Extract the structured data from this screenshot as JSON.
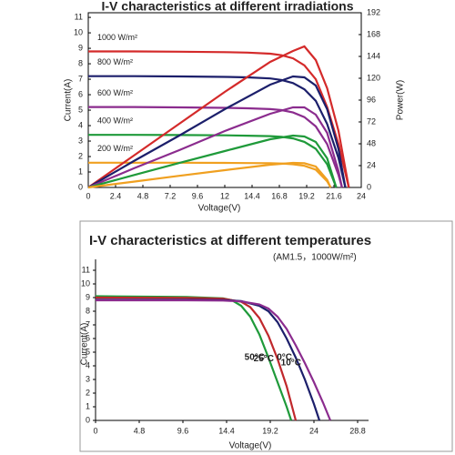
{
  "chart_data": [
    {
      "type": "line",
      "title": "I-V characteristics at different irradiations",
      "x_label": "Voltage(V)",
      "y_label": "Current(A)",
      "y2_label": "Power(W)",
      "xlim": [
        0,
        24
      ],
      "xticks": [
        0,
        2.4,
        4.8,
        7.2,
        9.6,
        12,
        14.4,
        16.8,
        19.2,
        21.6,
        24
      ],
      "ylim": [
        0,
        11.3
      ],
      "yticks": [
        0,
        1,
        2,
        3,
        4,
        5,
        6,
        7,
        8,
        9,
        10,
        11
      ],
      "y2lim": [
        0,
        192
      ],
      "y2ticks": [
        0,
        24,
        48,
        72,
        96,
        120,
        144,
        168,
        192
      ],
      "grid": false,
      "series": [
        {
          "name": "1000 W/m²",
          "color": "#d42a2a",
          "x": [
            0,
            4,
            8,
            12,
            14,
            16,
            17,
            18,
            19,
            20,
            21,
            22,
            22.9
          ],
          "values": [
            8.8,
            8.8,
            8.78,
            8.75,
            8.72,
            8.65,
            8.55,
            8.35,
            7.9,
            7.0,
            5.2,
            2.8,
            0
          ]
        },
        {
          "name": "800 W/m²",
          "color": "#1c1f6b",
          "x": [
            0,
            4,
            8,
            12,
            14,
            16,
            17,
            18,
            19,
            20,
            21,
            22,
            22.6
          ],
          "values": [
            7.2,
            7.2,
            7.18,
            7.15,
            7.12,
            7.05,
            6.95,
            6.75,
            6.35,
            5.6,
            4.1,
            1.9,
            0
          ]
        },
        {
          "name": "600 W/m²",
          "color": "#8b2c8e",
          "x": [
            0,
            4,
            8,
            12,
            14,
            16,
            17,
            18,
            19,
            20,
            21,
            22,
            22.3
          ],
          "values": [
            5.2,
            5.2,
            5.18,
            5.15,
            5.12,
            5.07,
            5,
            4.85,
            4.55,
            3.95,
            2.8,
            0.8,
            0
          ]
        },
        {
          "name": "400 W/m²",
          "color": "#1f9a3a",
          "x": [
            0,
            4,
            8,
            12,
            14,
            16,
            17,
            18,
            19,
            20,
            21,
            21.8
          ],
          "values": [
            3.4,
            3.4,
            3.39,
            3.37,
            3.35,
            3.32,
            3.27,
            3.17,
            2.95,
            2.5,
            1.5,
            0
          ]
        },
        {
          "name": "200 W/m²",
          "color": "#f0a020",
          "x": [
            0,
            4,
            8,
            12,
            14,
            16,
            17,
            18,
            19,
            20,
            21,
            21.3
          ],
          "values": [
            1.6,
            1.6,
            1.6,
            1.59,
            1.58,
            1.57,
            1.55,
            1.5,
            1.4,
            1.15,
            0.4,
            0
          ]
        },
        {
          "axis": "y2",
          "color": "#d42a2a",
          "x": [
            0,
            4,
            8,
            12,
            16,
            18,
            19,
            20,
            21,
            22,
            22.9
          ],
          "values": [
            0,
            35,
            70,
            105,
            138,
            150,
            155,
            140,
            109,
            62,
            0
          ]
        },
        {
          "axis": "y2",
          "color": "#1c1f6b",
          "x": [
            0,
            4,
            8,
            12,
            16,
            18,
            19,
            20,
            21,
            22,
            22.6
          ],
          "values": [
            0,
            29,
            57,
            86,
            113,
            122,
            121,
            112,
            86,
            42,
            0
          ]
        },
        {
          "axis": "y2",
          "color": "#8b2c8e",
          "x": [
            0,
            4,
            8,
            12,
            16,
            18,
            19,
            20,
            21,
            22,
            22.3
          ],
          "values": [
            0,
            21,
            41,
            62,
            81,
            88,
            88,
            80,
            60,
            18,
            0
          ]
        },
        {
          "axis": "y2",
          "color": "#1f9a3a",
          "x": [
            0,
            4,
            8,
            12,
            16,
            18,
            19,
            20,
            21,
            21.8
          ],
          "values": [
            0,
            13.6,
            27,
            40,
            53,
            57,
            56,
            50,
            32,
            0
          ]
        },
        {
          "axis": "y2",
          "color": "#f0a020",
          "x": [
            0,
            4,
            8,
            12,
            16,
            18,
            19,
            20,
            21,
            21.3
          ],
          "values": [
            0,
            6.4,
            12.8,
            19,
            25,
            27,
            26.6,
            23,
            8.4,
            0
          ]
        }
      ]
    },
    {
      "type": "line",
      "title": "I-V characteristics at different temperatures",
      "subtitle": "(AM1.5，1000W/m²)",
      "x_label": "Voltage(V)",
      "y_label": "Current(A)",
      "xlim": [
        0,
        30
      ],
      "xticks": [
        0,
        4.8,
        9.6,
        14.4,
        19.2,
        24,
        28.8
      ],
      "ylim": [
        0,
        11.8
      ],
      "yticks": [
        0,
        1,
        2,
        3,
        4,
        5,
        6,
        7,
        8,
        9,
        10,
        11
      ],
      "grid": false,
      "series": [
        {
          "name": "50°C",
          "color": "#1f9a3a",
          "x": [
            0,
            10,
            14,
            15,
            16,
            17,
            18,
            19,
            20,
            21,
            21.5
          ],
          "values": [
            9.1,
            9.05,
            8.95,
            8.8,
            8.4,
            7.6,
            6.3,
            4.6,
            2.8,
            1.0,
            0
          ]
        },
        {
          "name": "25°C",
          "color": "#c0282c",
          "x": [
            0,
            10,
            14,
            16,
            17,
            18,
            19,
            20,
            21,
            22
          ],
          "values": [
            9.0,
            8.98,
            8.92,
            8.7,
            8.3,
            7.5,
            6.2,
            4.5,
            2.5,
            0
          ]
        },
        {
          "name": "0°C",
          "color": "#1c1f6b",
          "x": [
            0,
            10,
            14,
            16,
            18,
            19,
            20,
            21,
            22,
            23,
            24,
            24.6
          ],
          "values": [
            8.85,
            8.85,
            8.82,
            8.75,
            8.4,
            8.0,
            7.2,
            6.0,
            4.6,
            3.0,
            1.2,
            0
          ]
        },
        {
          "name": "10°C",
          "color": "#8b2c8e",
          "x": [
            0,
            10,
            14,
            16,
            18,
            19,
            20,
            21,
            22,
            23,
            24,
            25,
            25.8
          ],
          "values": [
            8.8,
            8.8,
            8.78,
            8.72,
            8.5,
            8.2,
            7.6,
            6.7,
            5.5,
            4.2,
            2.8,
            1.3,
            0
          ]
        }
      ]
    }
  ]
}
